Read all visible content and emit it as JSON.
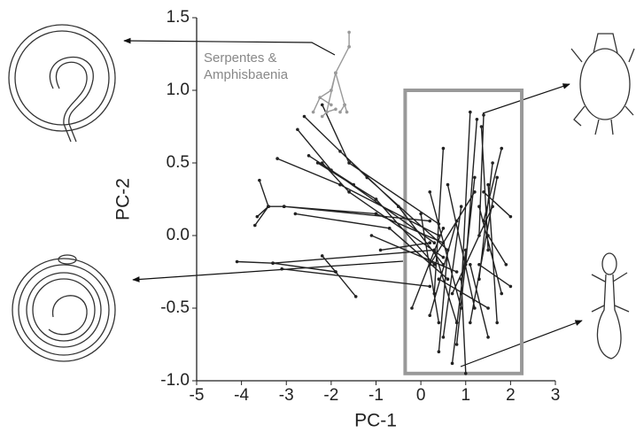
{
  "chart_data": {
    "type": "phylomorphospace",
    "xlabel": "PC-1",
    "ylabel": "PC-2",
    "xlim": [
      -5,
      3
    ],
    "ylim": [
      -1.0,
      1.5
    ],
    "xticks": [
      -5,
      -4,
      -3,
      -2,
      -1,
      0,
      1,
      2,
      3
    ],
    "yticks": [
      {
        "value": -1,
        "label": "-1.0"
      },
      -0.5,
      {
        "value": 0,
        "label": "0.0"
      },
      0.5,
      {
        "value": 1,
        "label": "1.0"
      },
      1.5
    ],
    "annotation_lines": [
      "Serpentes &",
      "Amphisbaenia"
    ],
    "highlight": {
      "xlim": [
        -0.35,
        2.25
      ],
      "ylim": [
        -0.95,
        1.0
      ],
      "color": "#999999"
    },
    "series": [
      {
        "color": "#222222",
        "x": [
          -4.1,
          -3.3,
          null,
          -3.3,
          -1.9,
          null,
          -1.9,
          -1.45,
          null,
          -1.9,
          -2.2,
          null,
          -3.3,
          0.3,
          null,
          -3.7,
          -3.4,
          null,
          -3.4,
          -3.05,
          null,
          -3.4,
          -3.65,
          null,
          -3.4,
          -3.6,
          null,
          -3.05,
          0.2,
          null,
          -3.05,
          -1.0,
          null,
          -1.0,
          0.5,
          null,
          -3.2,
          -1.8,
          null,
          -1.8,
          0.4,
          null,
          -2.2,
          -1.6,
          null,
          -1.6,
          0.5,
          null,
          -2.3,
          -1.0,
          null,
          -1.0,
          0.3,
          null,
          -2.75,
          -2.0,
          null,
          -2.0,
          0.3,
          null,
          -2.2,
          -1.6,
          null,
          -1.6,
          0.4,
          null,
          -2.6,
          -1.2,
          null,
          -1.2,
          0.6,
          null,
          -1.8,
          -0.5,
          null,
          -0.5,
          0.5,
          null,
          -2.5,
          -1.5,
          null,
          -2.8,
          -0.7,
          null,
          -0.7,
          0.6,
          null,
          -3.1,
          0.2,
          null,
          -0.9,
          0.2,
          null,
          -1.1,
          0.8,
          null,
          0.0,
          0.4,
          null,
          0.5,
          0.3,
          null,
          0.2,
          0.9,
          null,
          1.25,
          1.0,
          null,
          1.4,
          1.3,
          null,
          1.1,
          0.9,
          null,
          1.35,
          1.5,
          null,
          1.6,
          1.3,
          null,
          1.8,
          1.4,
          null,
          1.5,
          1.7,
          null,
          1.2,
          0.8,
          null,
          1.0,
          0.7,
          null,
          0.9,
          1.0,
          null,
          0.6,
          0.4,
          null,
          0.8,
          0.2,
          null,
          1.3,
          1.8,
          null,
          1.5,
          1.9,
          null,
          1.4,
          2.0,
          null,
          1.1,
          1.5,
          null,
          0.3,
          0.8,
          null,
          0.5,
          -0.2,
          null,
          0.2,
          1.2,
          null,
          0.7,
          1.6,
          null,
          1.2,
          0.6,
          null,
          0.9,
          0.5,
          null,
          1.7,
          1.1,
          null,
          0.4,
          1.5,
          null,
          1.3,
          2.0
        ],
        "y": [
          -0.18,
          -0.19,
          null,
          -0.19,
          -0.25,
          null,
          -0.25,
          -0.42,
          null,
          -0.25,
          -0.14,
          null,
          -0.19,
          -0.1,
          null,
          0.07,
          0.2,
          null,
          0.2,
          0.2,
          null,
          0.2,
          0.13,
          null,
          0.2,
          0.38,
          null,
          0.2,
          0.1,
          null,
          0.2,
          0.15,
          null,
          0.15,
          -0.05,
          null,
          0.53,
          0.35,
          null,
          0.35,
          0.0,
          null,
          0.5,
          0.3,
          null,
          0.3,
          -0.15,
          null,
          0.5,
          0.25,
          null,
          0.25,
          -0.2,
          null,
          0.73,
          0.45,
          null,
          0.45,
          -0.05,
          null,
          0.9,
          0.5,
          null,
          0.5,
          0.08,
          null,
          0.82,
          0.4,
          null,
          0.4,
          -0.1,
          null,
          0.58,
          0.2,
          null,
          0.2,
          -0.2,
          null,
          0.55,
          0.35,
          null,
          0.15,
          0.05,
          null,
          0.05,
          -0.3,
          null,
          -0.23,
          -0.35,
          null,
          -0.1,
          -0.05,
          null,
          0.0,
          -0.25,
          null,
          0.15,
          -0.6,
          null,
          0.6,
          -0.4,
          null,
          0.3,
          -0.5,
          null,
          0.8,
          -0.2,
          null,
          0.83,
          0.0,
          null,
          0.85,
          -0.4,
          null,
          0.75,
          -0.1,
          null,
          0.5,
          -0.3,
          null,
          0.6,
          0.1,
          null,
          0.35,
          -0.6,
          null,
          0.4,
          -0.75,
          null,
          -0.1,
          -0.88,
          null,
          -0.3,
          -0.95,
          null,
          -0.1,
          -0.8,
          null,
          0.1,
          -0.55,
          null,
          0.2,
          -0.4,
          null,
          0.0,
          -0.2,
          null,
          0.3,
          0.13,
          null,
          -0.2,
          -0.7,
          null,
          -0.1,
          -0.6,
          null,
          0.05,
          -0.5,
          null,
          -0.2,
          0.3,
          null,
          -0.4,
          0.2,
          null,
          -0.5,
          0.35,
          null,
          0.2,
          -0.7,
          null,
          0.4,
          -0.6,
          null,
          -0.3,
          -0.5,
          null,
          -0.2,
          -0.35
        ]
      },
      {
        "color": "#999999",
        "x": [
          -2.0,
          -1.9,
          null,
          -1.9,
          -1.6,
          null,
          -1.6,
          -1.6,
          null,
          -1.9,
          -2.1,
          null,
          -2.1,
          -2.2,
          null,
          -2.1,
          -1.9,
          null,
          -2.0,
          -2.25,
          null,
          -2.25,
          -2.4,
          null,
          -2.25,
          -2.0,
          null,
          -1.9,
          -1.7,
          null,
          -1.7,
          -1.65,
          null,
          -1.7,
          -1.8
        ],
        "y": [
          1.0,
          1.12,
          null,
          1.12,
          1.3,
          null,
          1.3,
          1.4,
          null,
          1.12,
          0.85,
          null,
          0.85,
          0.82,
          null,
          0.85,
          0.87,
          null,
          1.0,
          0.95,
          null,
          0.95,
          0.85,
          null,
          0.95,
          0.9,
          null,
          1.12,
          0.9,
          null,
          0.9,
          0.85,
          null,
          0.9,
          0.85
        ]
      }
    ]
  }
}
